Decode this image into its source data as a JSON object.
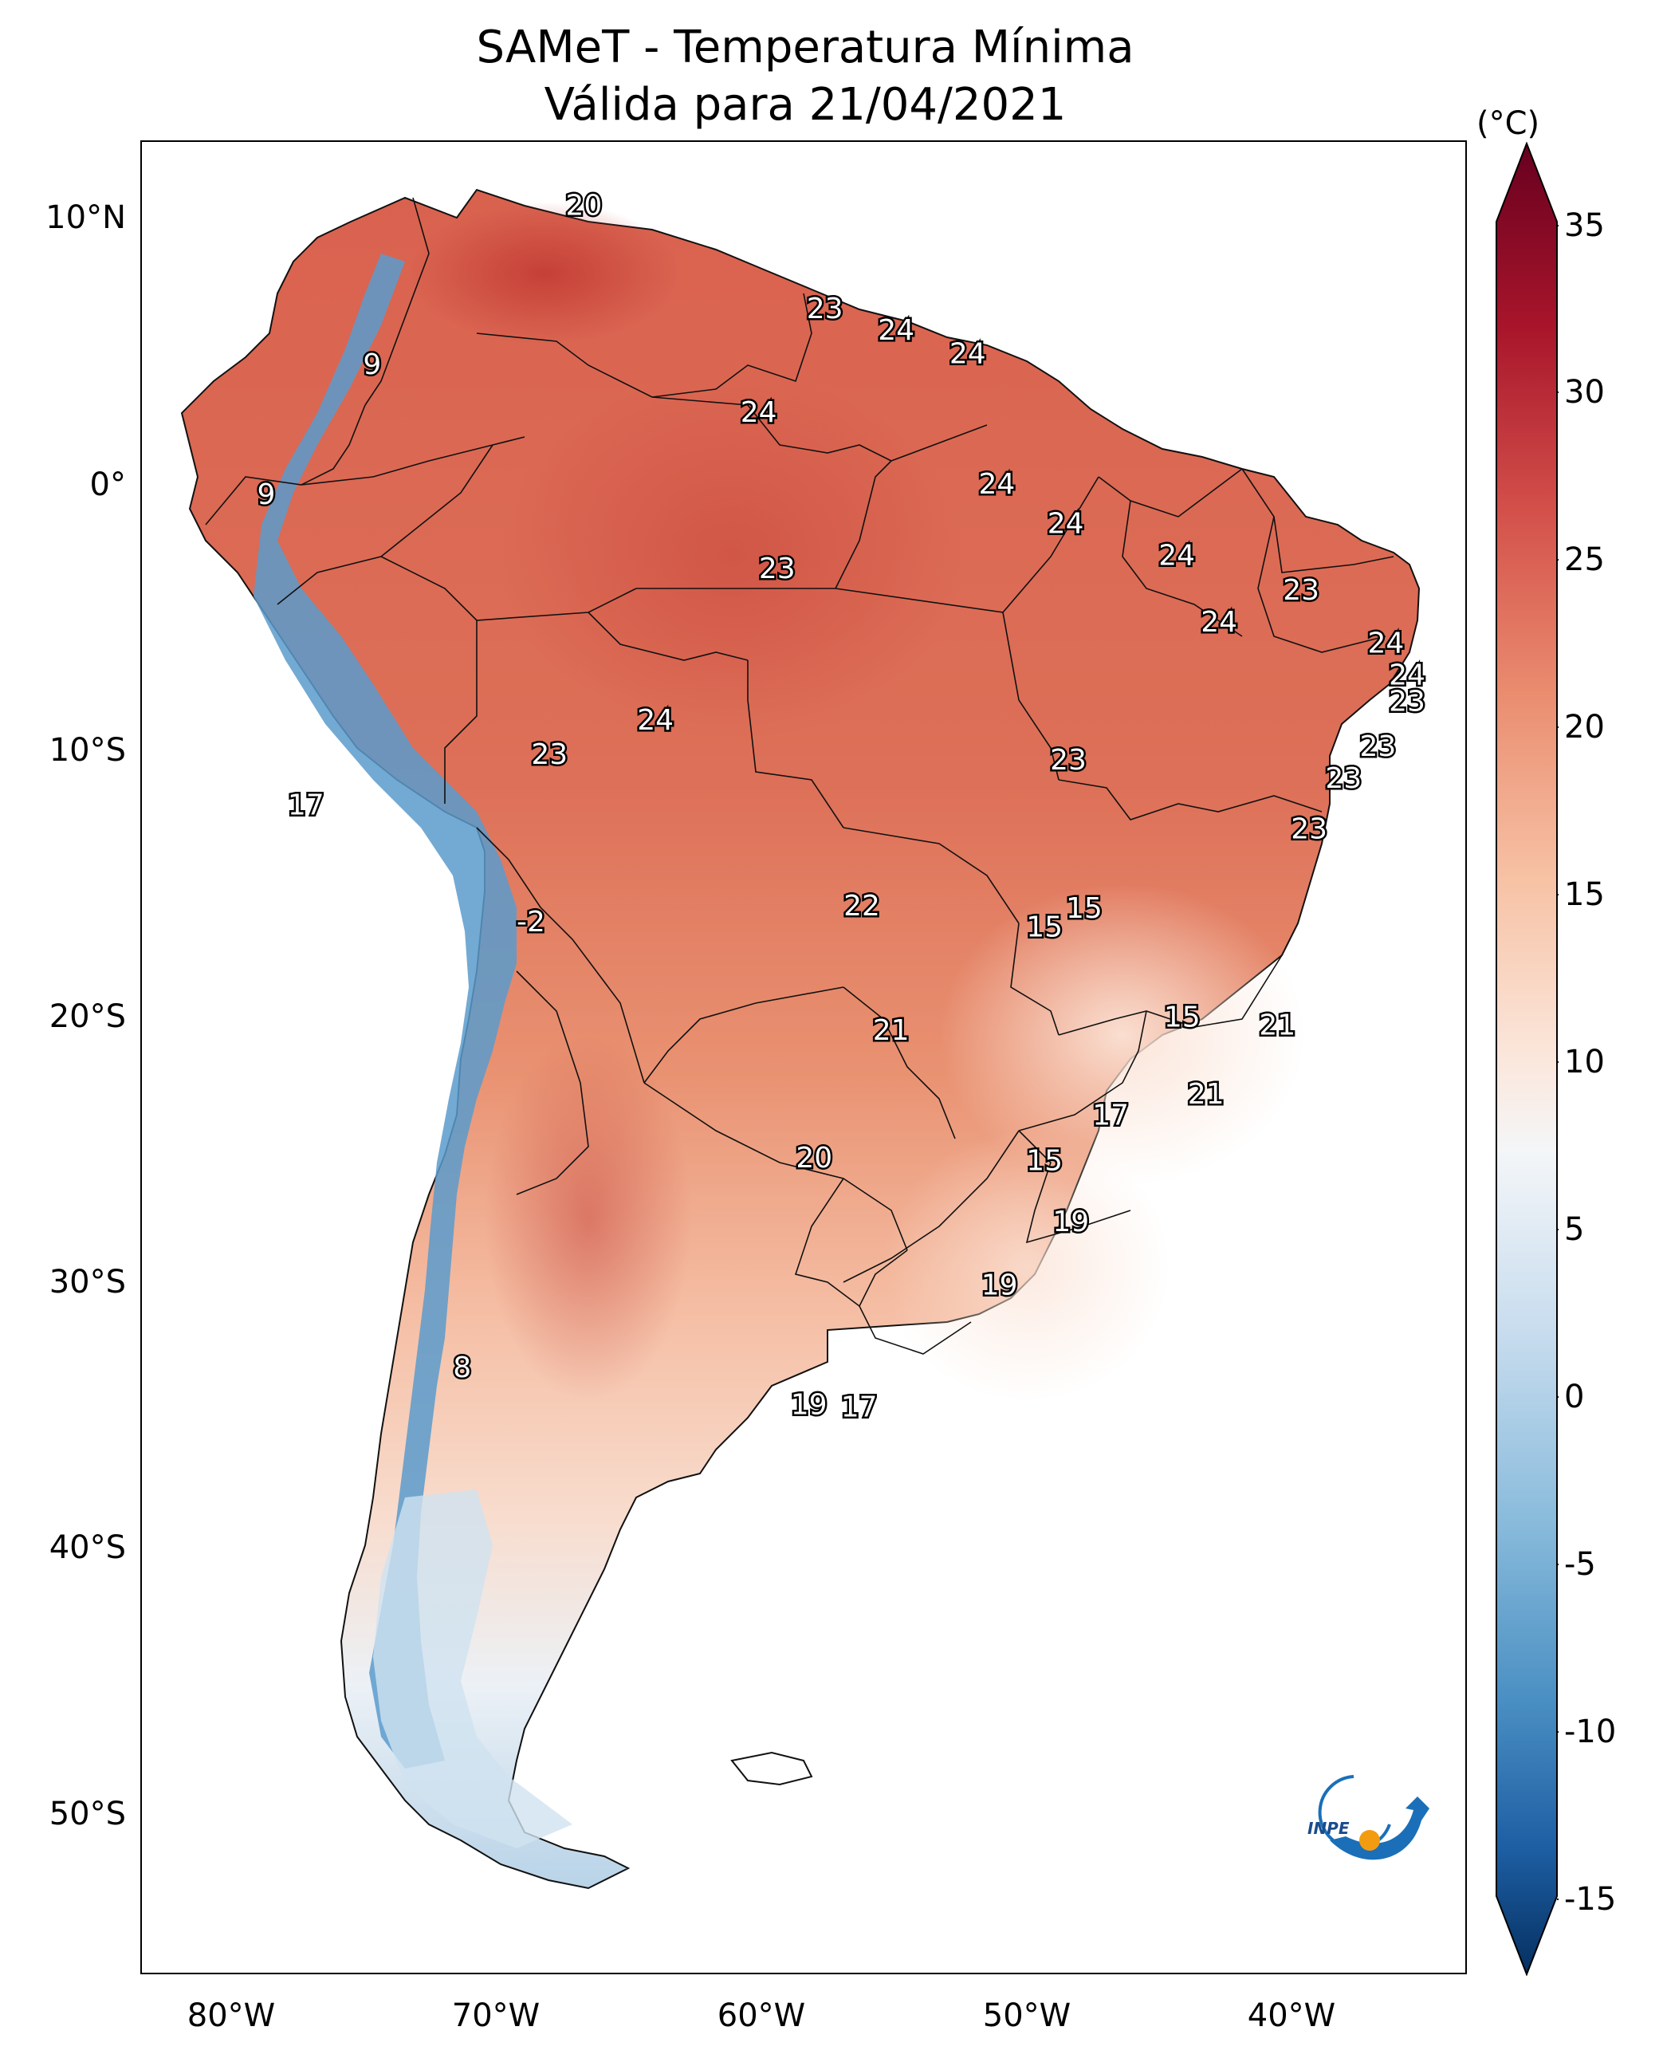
{
  "title": {
    "line1": "SAMeT - Temperatura Mínima",
    "line2": "Válida para 21/04/2021"
  },
  "axes": {
    "lat_ticks": [
      "10°N",
      "0°",
      "10°S",
      "20°S",
      "30°S",
      "40°S",
      "50°S"
    ],
    "lon_ticks": [
      "80°W",
      "70°W",
      "60°W",
      "50°W",
      "40°W"
    ]
  },
  "colorbar": {
    "unit_label": "(°C)",
    "ticks": [
      "35",
      "30",
      "25",
      "20",
      "15",
      "10",
      "5",
      "0",
      "-5",
      "-10",
      "-15"
    ]
  },
  "contour_labels": [
    {
      "text": "20",
      "lon": -66.3,
      "lat": 10.6
    },
    {
      "text": "23",
      "lon": -57.2,
      "lat": 6.7
    },
    {
      "text": "24",
      "lon": -54.5,
      "lat": 5.9
    },
    {
      "text": "24",
      "lon": -51.8,
      "lat": 5.0
    },
    {
      "text": "9",
      "lon": -74.3,
      "lat": 4.6
    },
    {
      "text": "24",
      "lon": -59.7,
      "lat": 2.8
    },
    {
      "text": "24",
      "lon": -50.7,
      "lat": 0.1
    },
    {
      "text": "9",
      "lon": -78.3,
      "lat": -0.3
    },
    {
      "text": "24",
      "lon": -48.1,
      "lat": -1.4
    },
    {
      "text": "24",
      "lon": -43.9,
      "lat": -2.6
    },
    {
      "text": "23",
      "lon": -59.0,
      "lat": -3.1
    },
    {
      "text": "23",
      "lon": -39.2,
      "lat": -3.9
    },
    {
      "text": "24",
      "lon": -42.3,
      "lat": -5.1
    },
    {
      "text": "24",
      "lon": -36.0,
      "lat": -5.9
    },
    {
      "text": "24",
      "lon": -35.2,
      "lat": -7.1
    },
    {
      "text": "23",
      "lon": -35.2,
      "lat": -8.1
    },
    {
      "text": "24",
      "lon": -63.6,
      "lat": -8.8
    },
    {
      "text": "23",
      "lon": -36.3,
      "lat": -9.8
    },
    {
      "text": "23",
      "lon": -67.6,
      "lat": -10.1
    },
    {
      "text": "23",
      "lon": -48.0,
      "lat": -10.3
    },
    {
      "text": "23",
      "lon": -37.6,
      "lat": -11.0
    },
    {
      "text": "17",
      "lon": -76.8,
      "lat": -12.0
    },
    {
      "text": "23",
      "lon": -38.9,
      "lat": -12.9
    },
    {
      "text": "15",
      "lon": -47.4,
      "lat": -15.9
    },
    {
      "text": "22",
      "lon": -55.8,
      "lat": -15.8
    },
    {
      "text": "15",
      "lon": -48.9,
      "lat": -16.6
    },
    {
      "text": "-2",
      "lon": -68.3,
      "lat": -16.4
    },
    {
      "text": "15",
      "lon": -43.7,
      "lat": -20.0
    },
    {
      "text": "21",
      "lon": -54.7,
      "lat": -20.5
    },
    {
      "text": "21",
      "lon": -40.1,
      "lat": -20.3
    },
    {
      "text": "21",
      "lon": -42.8,
      "lat": -22.9
    },
    {
      "text": "17",
      "lon": -46.4,
      "lat": -23.7
    },
    {
      "text": "20",
      "lon": -57.6,
      "lat": -25.3
    },
    {
      "text": "15",
      "lon": -48.9,
      "lat": -25.4
    },
    {
      "text": "19",
      "lon": -47.9,
      "lat": -27.7
    },
    {
      "text": "19",
      "lon": -50.6,
      "lat": -30.1
    },
    {
      "text": "8",
      "lon": -70.9,
      "lat": -33.2
    },
    {
      "text": "19",
      "lon": -57.8,
      "lat": -34.6
    },
    {
      "text": "17",
      "lon": -55.9,
      "lat": -34.7
    }
  ]
}
